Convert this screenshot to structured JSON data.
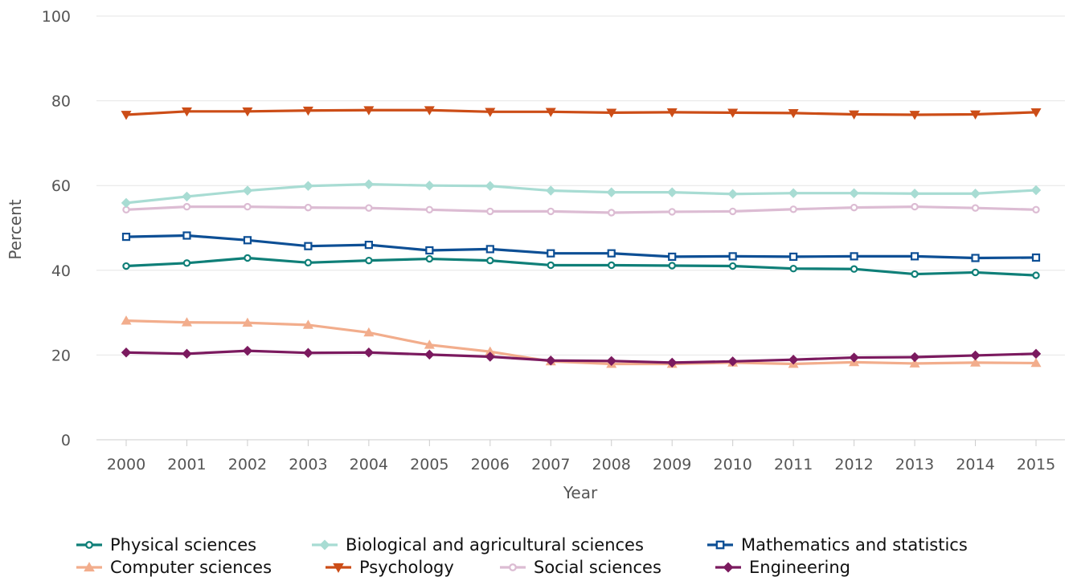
{
  "chart_data": {
    "type": "line",
    "title": "",
    "xlabel": "Year",
    "ylabel": "Percent",
    "ylim": [
      0,
      100
    ],
    "yticks": [
      "0",
      "20",
      "40",
      "60",
      "80",
      "100"
    ],
    "x": [
      "2000",
      "2001",
      "2002",
      "2003",
      "2004",
      "2005",
      "2006",
      "2007",
      "2008",
      "2009",
      "2010",
      "2011",
      "2012",
      "2013",
      "2014",
      "2015"
    ],
    "grid": "horizontal",
    "legend": "bottom",
    "series": [
      {
        "name": "Physical sciences",
        "color": "#0f7f78",
        "marker": "circle",
        "values": [
          41.0,
          41.7,
          42.9,
          41.8,
          42.3,
          42.7,
          42.3,
          41.2,
          41.2,
          41.1,
          41.0,
          40.4,
          40.3,
          39.1,
          39.5,
          38.8
        ]
      },
      {
        "name": "Biological and agricultural sciences",
        "color": "#a8dcd3",
        "marker": "diamond",
        "values": [
          55.9,
          57.4,
          58.8,
          59.9,
          60.3,
          60.0,
          59.9,
          58.8,
          58.4,
          58.4,
          58.0,
          58.2,
          58.2,
          58.1,
          58.1,
          58.9
        ]
      },
      {
        "name": "Mathematics and statistics",
        "color": "#0d4f95",
        "marker": "square",
        "values": [
          47.9,
          48.2,
          47.1,
          45.7,
          46.0,
          44.7,
          45.0,
          44.0,
          44.0,
          43.2,
          43.3,
          43.2,
          43.3,
          43.3,
          42.9,
          43.0
        ]
      },
      {
        "name": "Computer sciences",
        "color": "#f2ad8c",
        "marker": "triangle-up",
        "values": [
          28.1,
          27.7,
          27.6,
          27.1,
          25.3,
          22.4,
          20.8,
          18.5,
          17.9,
          17.9,
          18.2,
          17.9,
          18.3,
          18.0,
          18.2,
          18.1
        ]
      },
      {
        "name": "Psychology",
        "color": "#cc4d17",
        "marker": "triangle-down",
        "values": [
          76.7,
          77.5,
          77.5,
          77.7,
          77.8,
          77.8,
          77.4,
          77.4,
          77.2,
          77.3,
          77.2,
          77.1,
          76.8,
          76.7,
          76.8,
          77.3
        ]
      },
      {
        "name": "Social sciences",
        "color": "#dcbcd3",
        "marker": "circle",
        "values": [
          54.3,
          55.0,
          55.0,
          54.8,
          54.7,
          54.3,
          53.9,
          53.9,
          53.6,
          53.8,
          53.9,
          54.4,
          54.8,
          55.0,
          54.7,
          54.3
        ]
      },
      {
        "name": "Engineering",
        "color": "#7b1a5f",
        "marker": "diamond",
        "values": [
          20.6,
          20.3,
          21.0,
          20.5,
          20.6,
          20.1,
          19.6,
          18.7,
          18.6,
          18.2,
          18.5,
          18.9,
          19.4,
          19.5,
          19.9,
          20.3
        ]
      }
    ]
  }
}
